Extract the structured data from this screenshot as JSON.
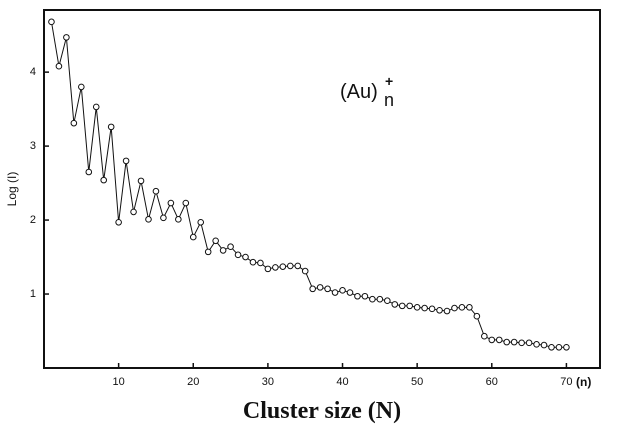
{
  "chart_data": {
    "type": "line",
    "xlabel": "Cluster size (N)",
    "ylabel": "Log (I)",
    "x_unit_label": "(n)",
    "annotation": {
      "text": "(Au)",
      "subscript": "n",
      "superscript": "+"
    },
    "x": [
      1,
      2,
      3,
      4,
      5,
      6,
      7,
      8,
      9,
      10,
      11,
      12,
      13,
      14,
      15,
      16,
      17,
      18,
      19,
      20,
      21,
      22,
      23,
      24,
      25,
      26,
      27,
      28,
      29,
      30,
      31,
      32,
      33,
      34,
      35,
      36,
      37,
      38,
      39,
      40,
      41,
      42,
      43,
      44,
      45,
      46,
      47,
      48,
      49,
      50,
      51,
      52,
      53,
      54,
      55,
      56,
      57,
      58,
      59,
      60,
      61,
      62,
      63,
      64,
      65,
      66,
      67,
      68,
      69,
      70
    ],
    "values": [
      4.68,
      4.08,
      4.47,
      3.31,
      3.8,
      2.65,
      3.53,
      2.54,
      3.26,
      1.97,
      2.8,
      2.11,
      2.53,
      2.01,
      2.39,
      2.03,
      2.23,
      2.01,
      2.23,
      1.77,
      1.97,
      1.57,
      1.72,
      1.59,
      1.64,
      1.53,
      1.5,
      1.43,
      1.42,
      1.34,
      1.36,
      1.37,
      1.38,
      1.38,
      1.31,
      1.07,
      1.09,
      1.07,
      1.02,
      1.05,
      1.02,
      0.97,
      0.97,
      0.93,
      0.93,
      0.91,
      0.86,
      0.84,
      0.84,
      0.82,
      0.81,
      0.8,
      0.78,
      0.77,
      0.81,
      0.82,
      0.82,
      0.7,
      0.43,
      0.38,
      0.38,
      0.35,
      0.35,
      0.34,
      0.34,
      0.32,
      0.31,
      0.28,
      0.28,
      0.28
    ],
    "color": "#111111",
    "xlim": [
      0,
      74.5
    ],
    "ylim": [
      0,
      4.84
    ],
    "xticks": [
      10,
      20,
      30,
      40,
      50,
      60,
      70
    ],
    "yticks": [
      1,
      2,
      3,
      4
    ]
  }
}
